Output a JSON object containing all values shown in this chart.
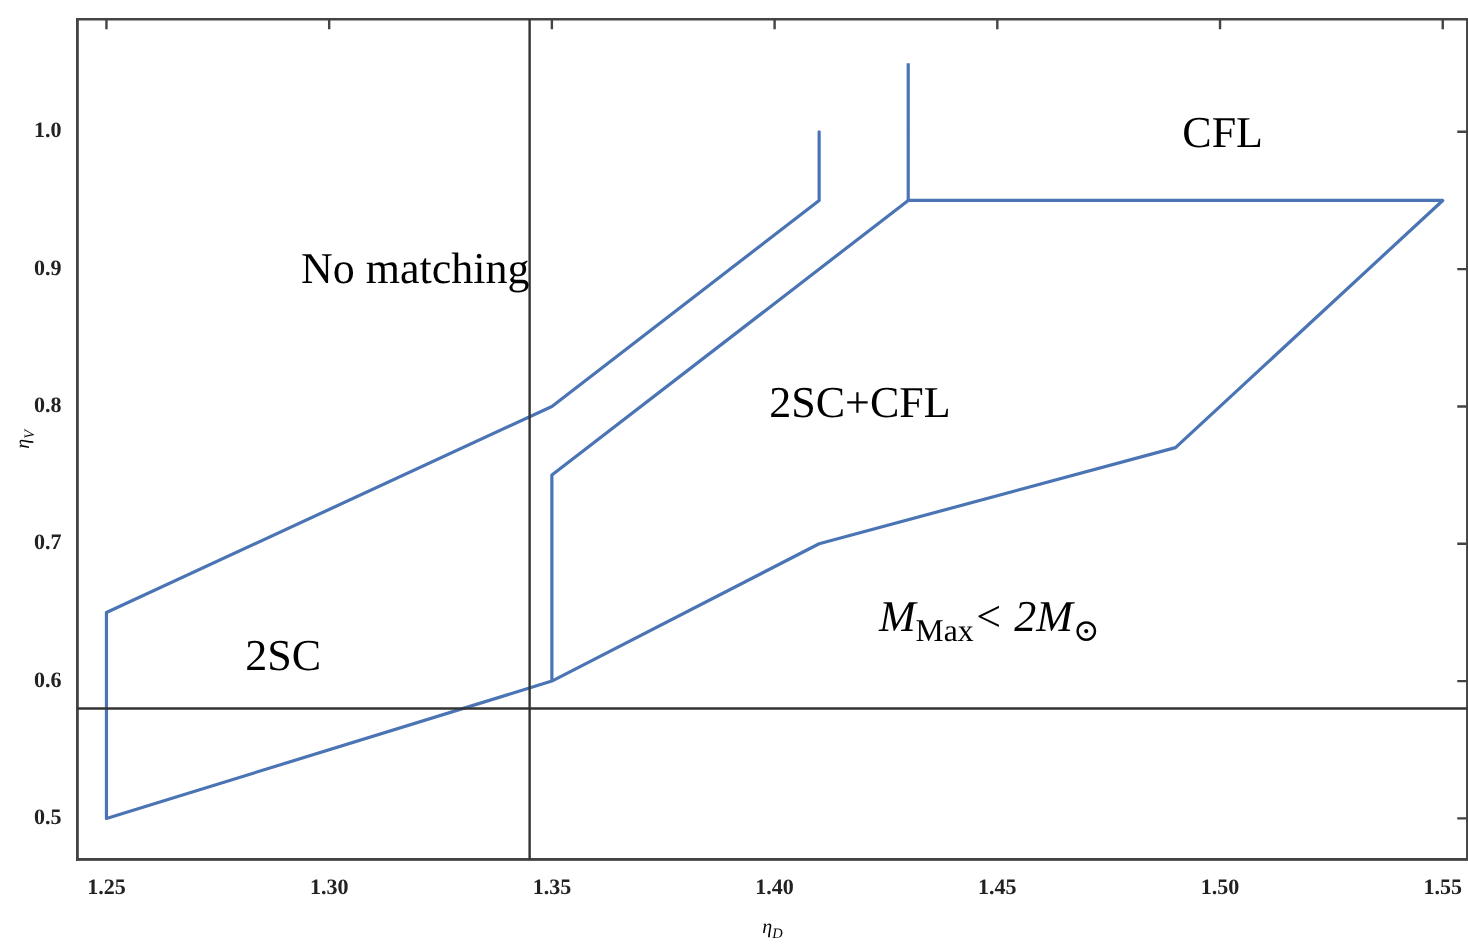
{
  "chart_data": {
    "type": "line",
    "xlabel": "η$_{D}$",
    "ylabel": "η$_{V}$",
    "series": [
      {
        "color": "#4a74b4",
        "x": [
          1.41,
          1.41,
          1.35,
          1.25,
          1.25,
          1.35,
          1.41,
          1.49,
          1.55,
          1.43,
          1.43
        ],
        "values": [
          1.0,
          0.95,
          0.8,
          0.65,
          0.5,
          0.6,
          0.7,
          0.77,
          0.95,
          0.95,
          1.05
        ]
      },
      {
        "color": "#4a74b4",
        "x": [
          1.35,
          1.35,
          1.43
        ],
        "values": [
          0.6,
          0.75,
          0.95
        ]
      }
    ],
    "xlim": [
      1.2435,
      1.5555
    ],
    "ylim": [
      0.47,
      1.082
    ],
    "xticks": [
      1.25,
      {
        "value": 1.3,
        "label": "1.30"
      },
      1.35,
      {
        "value": 1.4,
        "label": "1.40"
      },
      1.45,
      {
        "value": 1.5,
        "label": "1.50"
      },
      1.55
    ],
    "yticks": [
      0.5,
      0.6,
      0.7,
      0.8,
      0.9,
      {
        "value": 1.0,
        "label": "1.0"
      }
    ],
    "ref_lines": [
      {
        "axis": "x",
        "value": 1.345,
        "color": "#333333"
      },
      {
        "axis": "y",
        "value": 0.58,
        "color": "#333333"
      }
    ],
    "annotations": [
      "No matching",
      "2SC",
      "2SC+CFL",
      "CFL",
      "M$_{Max}$< 2M$_{⊙}$"
    ],
    "grid": false,
    "legend": false,
    "marker": "none",
    "line_style": "solid"
  }
}
